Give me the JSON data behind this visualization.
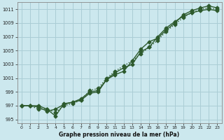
{
  "background_color": "#cce8ee",
  "grid_color": "#aacdd5",
  "line_color": "#2d5a2d",
  "xlabel": "Graphe pression niveau de la mer (hPa)",
  "ylim": [
    994.5,
    1012.0
  ],
  "xlim": [
    -0.5,
    23.5
  ],
  "yticks": [
    995,
    997,
    999,
    1001,
    1003,
    1005,
    1007,
    1009,
    1011
  ],
  "xticks": [
    0,
    1,
    2,
    3,
    4,
    5,
    6,
    7,
    8,
    9,
    10,
    11,
    12,
    13,
    14,
    15,
    16,
    17,
    18,
    19,
    20,
    21,
    22,
    23
  ],
  "series1_x": [
    0,
    1,
    2,
    3,
    4,
    5,
    6,
    7,
    8,
    9,
    10,
    11,
    12,
    13,
    14,
    15,
    16,
    17,
    18,
    19,
    20,
    21,
    22,
    23
  ],
  "series1_y": [
    997.0,
    997.0,
    996.8,
    996.2,
    996.5,
    997.2,
    997.5,
    998.0,
    999.0,
    999.2,
    1000.8,
    1001.8,
    1002.5,
    1003.0,
    1004.8,
    1005.5,
    1007.0,
    1008.3,
    1009.2,
    1010.0,
    1010.5,
    1010.8,
    1011.0,
    1010.8
  ],
  "series2_x": [
    0,
    1,
    2,
    3,
    4,
    5,
    6,
    7,
    8,
    9,
    10,
    11,
    12,
    13,
    14,
    15,
    16,
    17,
    18,
    19,
    20,
    21,
    22,
    23
  ],
  "series2_y": [
    997.0,
    997.0,
    997.0,
    996.5,
    995.5,
    997.3,
    997.5,
    997.8,
    998.8,
    999.0,
    1000.8,
    1001.5,
    1002.0,
    1003.5,
    1005.2,
    1006.3,
    1006.8,
    1008.0,
    1009.0,
    1010.2,
    1010.8,
    1011.2,
    1011.5,
    1011.2
  ],
  "series3_x": [
    0,
    1,
    2,
    3,
    4,
    5,
    6,
    7,
    8,
    9,
    10,
    11,
    12,
    13,
    14,
    15,
    16,
    17,
    18,
    19,
    20,
    21,
    22,
    23
  ],
  "series3_y": [
    997.0,
    997.0,
    996.5,
    996.5,
    996.0,
    997.0,
    997.3,
    997.8,
    999.2,
    999.5,
    1001.0,
    1002.0,
    1002.8,
    1003.5,
    1004.5,
    1005.5,
    1006.5,
    1007.8,
    1008.8,
    1009.8,
    1010.5,
    1011.0,
    1011.2,
    1011.0
  ],
  "marker": "D",
  "marker_size": 2.5,
  "linewidth": 1.0
}
